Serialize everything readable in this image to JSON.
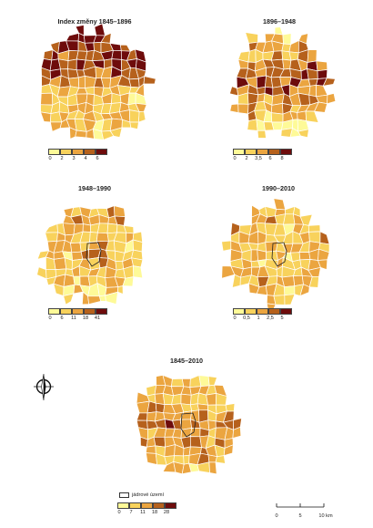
{
  "palette": [
    "#fefa98",
    "#f8d25c",
    "#eba540",
    "#b6611c",
    "#6e0c0c"
  ],
  "panels": [
    {
      "title": "Index změny 1845–1896",
      "legend": [
        "0",
        "2",
        "3",
        "4",
        "6"
      ]
    },
    {
      "title": "1896–1948",
      "legend": [
        "0",
        "2",
        "3,5",
        "6",
        "8"
      ]
    },
    {
      "title": "1948–1990",
      "legend": [
        "0",
        "6",
        "11",
        "18",
        "41"
      ]
    },
    {
      "title": "1990–2010",
      "legend": [
        "0",
        "0,5",
        "1",
        "2,5",
        "5"
      ]
    },
    {
      "title": "1845–2010",
      "legend": [
        "0",
        "7",
        "11",
        "18",
        "28"
      ]
    }
  ],
  "core_label": "jádrové území",
  "scale": {
    "ticks": [
      "0",
      "5",
      "10 km"
    ]
  },
  "north_arrow_icon": "north-arrow-icon"
}
